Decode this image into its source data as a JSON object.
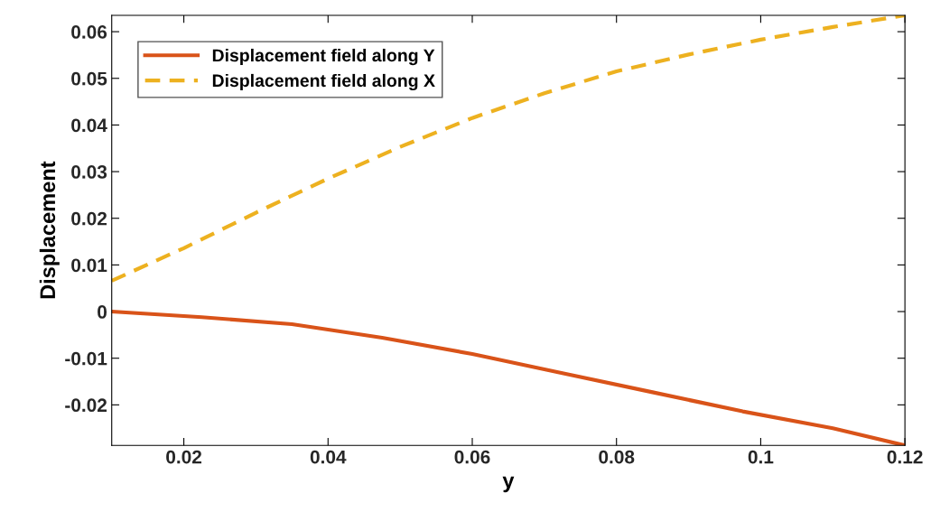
{
  "chart_data": {
    "type": "line",
    "xlabel": "y",
    "ylabel": "Displacement",
    "xlim": [
      0.01,
      0.12
    ],
    "ylim": [
      -0.0287,
      0.0635
    ],
    "xticks": [
      0.02,
      0.04,
      0.06,
      0.08,
      0.1,
      0.12
    ],
    "yticks": [
      -0.02,
      -0.01,
      0,
      0.01,
      0.02,
      0.03,
      0.04,
      0.05,
      0.06
    ],
    "legend": "top left",
    "grid": false,
    "series": [
      {
        "name": "Displacement field along Y",
        "color": "#d95319",
        "line_style": "solid",
        "x": [
          0.01,
          0.0225,
          0.035,
          0.0475,
          0.06,
          0.0725,
          0.085,
          0.0975,
          0.11,
          0.12
        ],
        "values": [
          0,
          -0.0012,
          -0.0027,
          -0.0056,
          -0.0091,
          -0.0132,
          -0.0173,
          -0.0214,
          -0.025,
          -0.0287
        ]
      },
      {
        "name": "Displacement field along X",
        "color": "#edb120",
        "line_style": "dashed",
        "x": [
          0.01,
          0.02,
          0.03,
          0.04,
          0.05,
          0.06,
          0.07,
          0.08,
          0.09,
          0.1,
          0.11,
          0.12
        ],
        "values": [
          0.0066,
          0.0136,
          0.0212,
          0.0285,
          0.0353,
          0.0415,
          0.0468,
          0.0515,
          0.0551,
          0.0583,
          0.061,
          0.0635
        ]
      }
    ]
  }
}
